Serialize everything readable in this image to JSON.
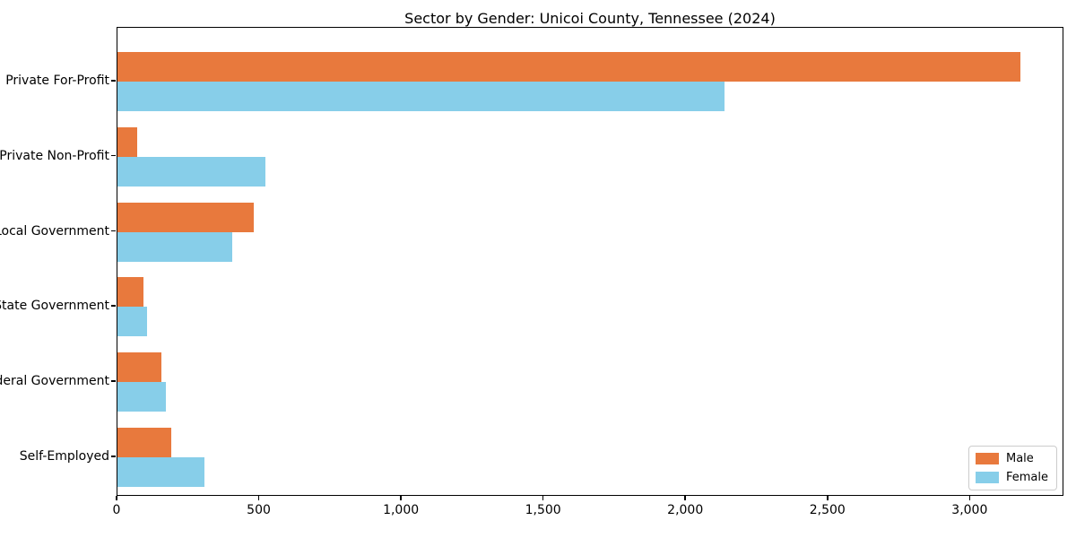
{
  "chart_data": {
    "type": "bar",
    "orientation": "horizontal",
    "title": "Sector by Gender: Unicoi County, Tennessee (2024)",
    "xlabel": "",
    "ylabel": "",
    "categories": [
      "Private For-Profit",
      "Private Non-Profit",
      "Local Government",
      "State Government",
      "Federal Government",
      "Self-Employed"
    ],
    "series": [
      {
        "name": "Male",
        "color": "#e8793d",
        "values": [
          3175,
          70,
          480,
          90,
          155,
          190
        ]
      },
      {
        "name": "Female",
        "color": "#87cee9",
        "values": [
          2135,
          520,
          405,
          105,
          170,
          305
        ]
      }
    ],
    "xlim": [
      0,
      3330
    ],
    "xticks": [
      0,
      500,
      1000,
      1500,
      2000,
      2500,
      3000
    ],
    "xtick_labels": [
      "0",
      "500",
      "1,000",
      "1,500",
      "2,000",
      "2,500",
      "3,000"
    ],
    "grid": false,
    "legend_position": "lower right",
    "colors": {
      "male_bar": "#e8793d",
      "female_bar": "#87cee9",
      "axis": "#000000",
      "legend_border": "#cccccc",
      "background": "#ffffff"
    }
  }
}
